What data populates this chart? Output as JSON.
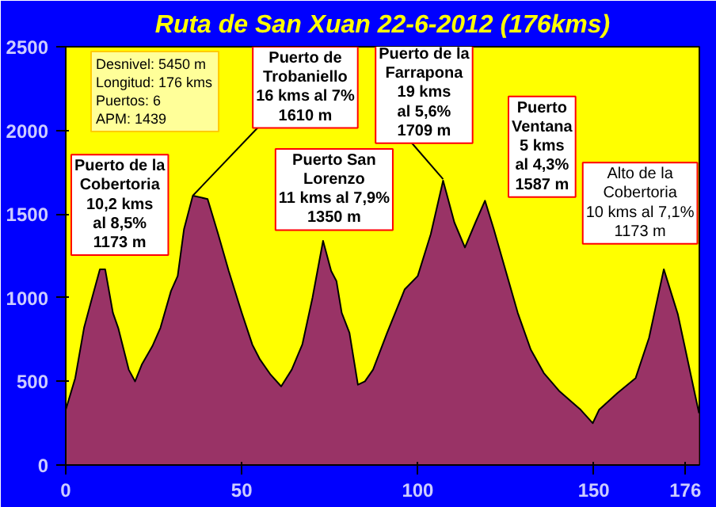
{
  "chart_data": {
    "type": "area",
    "title": "Ruta de San Xuan 22-6-2012 (176kms)",
    "x": [
      0,
      2.7,
      5.2,
      7.5,
      9.7,
      11.2,
      13.4,
      14.9,
      17.9,
      19.7,
      21.6,
      24.6,
      26.9,
      29.9,
      31.8,
      33.6,
      36.1,
      40.3,
      43.3,
      46.3,
      50,
      53,
      55.2,
      58.2,
      61.2,
      64.2,
      67.2,
      70.1,
      73.1,
      75.4,
      76.9,
      78.4,
      80.6,
      83,
      85,
      87.3,
      91.3,
      96.3,
      100,
      103.7,
      107.2,
      110.4,
      113.4,
      116.4,
      119.1,
      121.6,
      125.4,
      128.4,
      132.1,
      135.8,
      140.3,
      146.3,
      149.7,
      151.5,
      156.7,
      161.9,
      165.7,
      169.9,
      173.9,
      179.9
    ],
    "series": [
      {
        "color": "#993366",
        "values": [
          330,
          520,
          820,
          1000,
          1170,
          1170,
          910,
          820,
          570,
          500,
          600,
          710,
          820,
          1040,
          1130,
          1410,
          1610,
          1590,
          1380,
          1160,
          910,
          720,
          630,
          540,
          470,
          570,
          720,
          1000,
          1340,
          1160,
          1100,
          910,
          790,
          480,
          500,
          570,
          790,
          1050,
          1130,
          1380,
          1700,
          1450,
          1300,
          1450,
          1580,
          1410,
          1130,
          910,
          690,
          550,
          440,
          330,
          250,
          330,
          430,
          520,
          760,
          1170,
          900,
          310
        ]
      }
    ],
    "xlim": [
      0,
      180
    ],
    "xticks": [
      0,
      50,
      100,
      150,
      176
    ],
    "ylim": [
      0,
      2500
    ],
    "yticks": [
      0,
      500,
      1000,
      1500,
      2000,
      2500
    ],
    "grid": false,
    "annotations": [
      {
        "text": "Puerto de la\nCobertoria\n10,2 kms\nal 8,5%\n1173 m",
        "x": 10.4,
        "y": 1173
      },
      {
        "text": "Puerto de\nTrobaniello\n16 kms al 7%\n1610 m",
        "x": 36.1,
        "y": 1610
      },
      {
        "text": "Puerto San\nLorenzo\n11 kms al 7,9%\n1350 m",
        "x": 73.1,
        "y": 1350
      },
      {
        "text": "Puerto de la\nFarrapona\n19 kms\nal 5,6%\n1709 m",
        "x": 107.2,
        "y": 1709
      },
      {
        "text": "Puerto\nVentana\n5 kms\nal 4,3%\n1587 m",
        "x": 119.1,
        "y": 1587
      },
      {
        "text": "Alto de la\nCobertoria\n10 kms al 7,1%\n1173 m",
        "x": 169.9,
        "y": 1173
      },
      "Desnivel:   5450 m\nLongitud: 176 kms\nPuertos:          6\nAPM:            1439"
    ]
  }
}
